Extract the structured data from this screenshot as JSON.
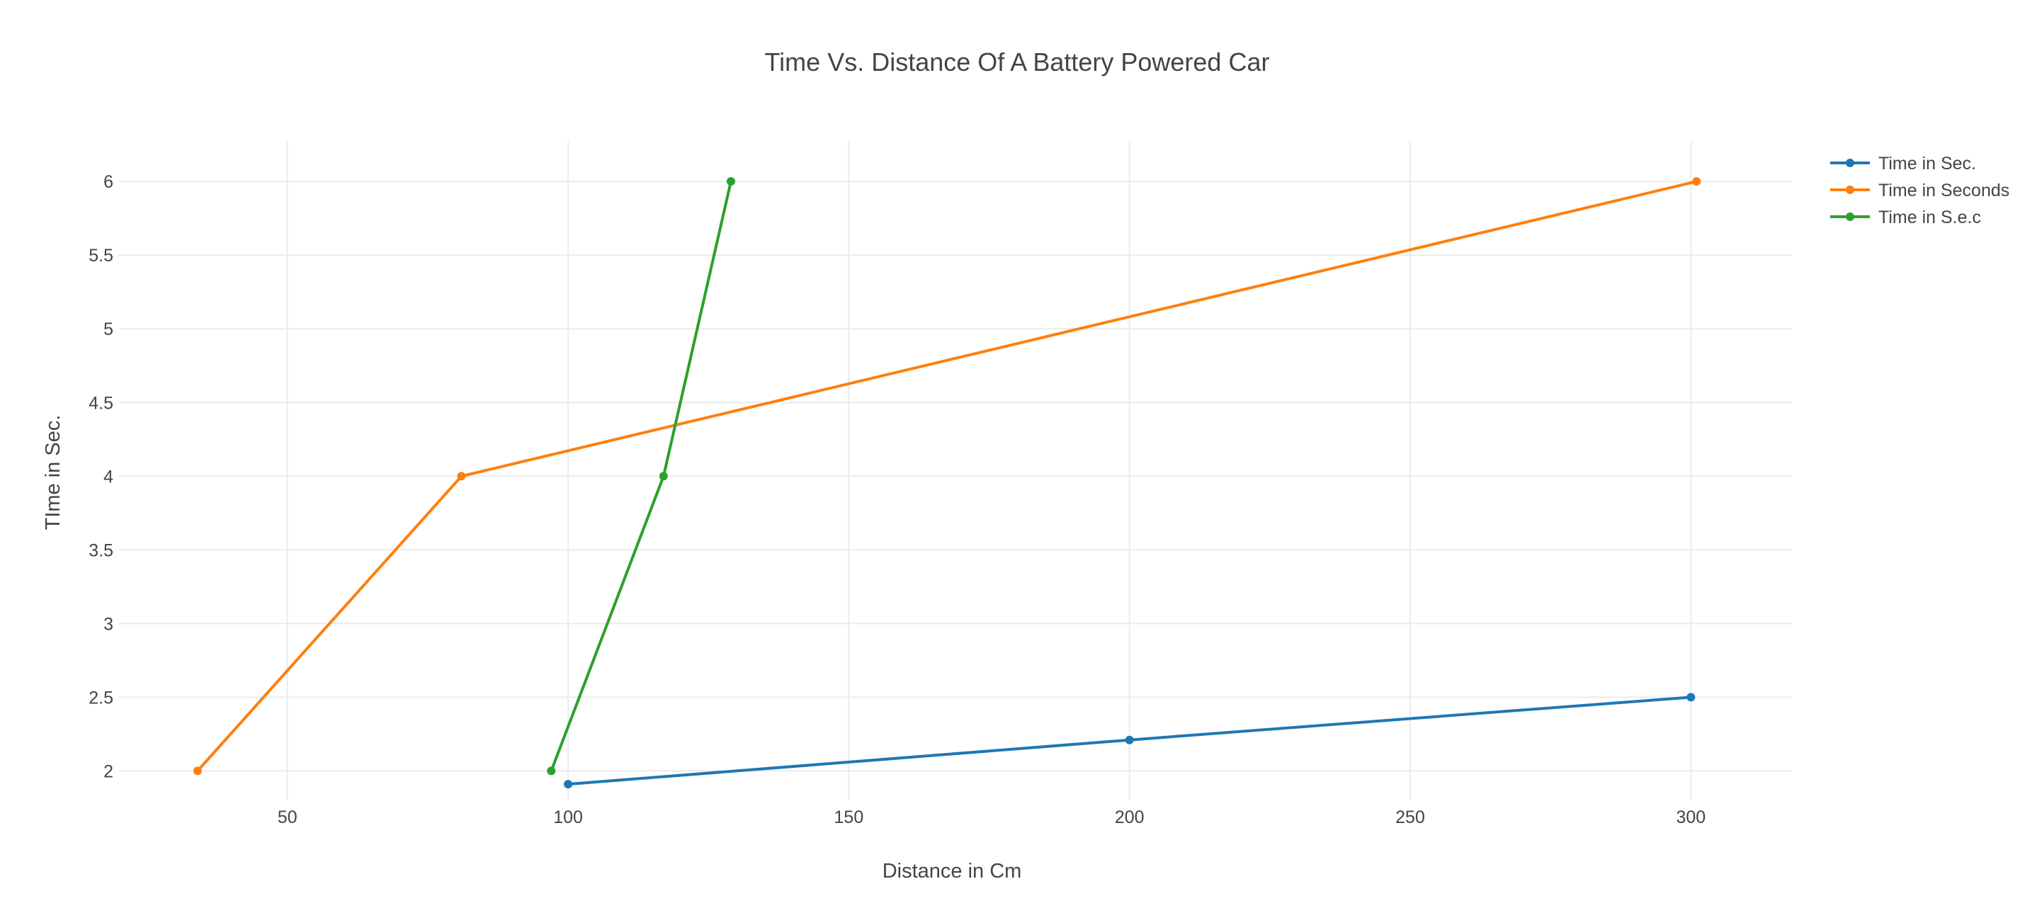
{
  "chart_data": {
    "type": "line",
    "title": "Time Vs. Distance Of A Battery Powered Car",
    "xlabel": "Distance in Cm",
    "ylabel": "TIme in Sec.",
    "xlim": [
      20,
      318
    ],
    "ylim": [
      1.8,
      6.27
    ],
    "xticks": [
      50,
      100,
      150,
      200,
      250,
      300
    ],
    "xtick_labels": [
      "50",
      "100",
      "150",
      "200",
      "250",
      "300"
    ],
    "yticks": [
      2,
      2.5,
      3,
      3.5,
      4,
      4.5,
      5,
      5.5,
      6
    ],
    "ytick_labels": [
      "2",
      "2.5",
      "3",
      "3.5",
      "4",
      "4.5",
      "5",
      "5.5",
      "6"
    ],
    "grid": true,
    "legend_position": "top-right",
    "series": [
      {
        "name": "Time in Sec.",
        "color": "#1f77b4",
        "x": [
          100,
          200,
          300
        ],
        "y": [
          1.91,
          2.21,
          2.5
        ]
      },
      {
        "name": "Time in Seconds",
        "color": "#ff7f0e",
        "x": [
          34,
          81,
          301
        ],
        "y": [
          2,
          4,
          6
        ]
      },
      {
        "name": "Time in S.e.c",
        "color": "#2ca02c",
        "x": [
          97,
          117,
          129
        ],
        "y": [
          2,
          4,
          6
        ]
      }
    ]
  }
}
